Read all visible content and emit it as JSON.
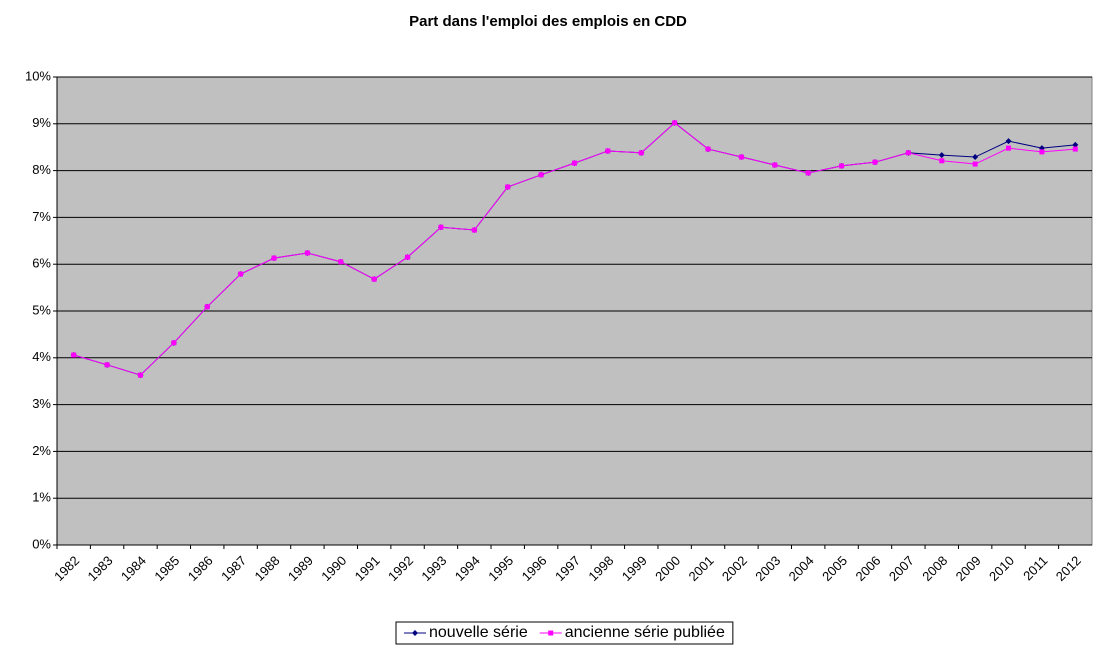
{
  "chart_data": {
    "type": "line",
    "title": "Part dans l'emploi des emplois en CDD",
    "categories": [
      "1982",
      "1983",
      "1984",
      "1985",
      "1986",
      "1987",
      "1988",
      "1989",
      "1990",
      "1991",
      "1992",
      "1993",
      "1994",
      "1995",
      "1996",
      "1997",
      "1998",
      "1999",
      "2000",
      "2001",
      "2002",
      "2003",
      "2004",
      "2005",
      "2006",
      "2007",
      "2008",
      "2009",
      "2010",
      "2011",
      "2012"
    ],
    "series": [
      {
        "name": "nouvelle série",
        "color": "#000080",
        "marker": "diamond",
        "values": [
          4.06,
          3.85,
          3.63,
          4.32,
          5.09,
          5.79,
          6.13,
          6.24,
          6.05,
          5.68,
          6.15,
          6.79,
          6.73,
          7.65,
          7.91,
          8.16,
          8.42,
          8.38,
          9.02,
          8.46,
          8.29,
          8.12,
          7.95,
          8.1,
          8.18,
          8.38,
          8.33,
          8.29,
          8.63,
          8.48,
          8.55
        ]
      },
      {
        "name": "ancienne série publiée",
        "color": "#ff00ff",
        "marker": "square",
        "values": [
          4.06,
          3.85,
          3.63,
          4.32,
          5.09,
          5.79,
          6.13,
          6.24,
          6.05,
          5.68,
          6.15,
          6.79,
          6.73,
          7.65,
          7.91,
          8.16,
          8.42,
          8.38,
          9.02,
          8.46,
          8.29,
          8.12,
          7.95,
          8.1,
          8.18,
          8.38,
          8.21,
          8.14,
          8.48,
          8.4,
          8.46
        ]
      }
    ],
    "ylim": [
      0,
      10
    ],
    "yticks": [
      {
        "value": 0,
        "label": "0%"
      },
      {
        "value": 1,
        "label": "1%"
      },
      {
        "value": 2,
        "label": "2%"
      },
      {
        "value": 3,
        "label": "3%"
      },
      {
        "value": 4,
        "label": "4%"
      },
      {
        "value": 5,
        "label": "5%"
      },
      {
        "value": 6,
        "label": "6%"
      },
      {
        "value": 7,
        "label": "7%"
      },
      {
        "value": 8,
        "label": "8%"
      },
      {
        "value": 9,
        "label": "9%"
      },
      {
        "value": 10,
        "label": "10%"
      }
    ],
    "grid": true,
    "legend": "bottom",
    "plot_background": "#c0c0c0"
  }
}
